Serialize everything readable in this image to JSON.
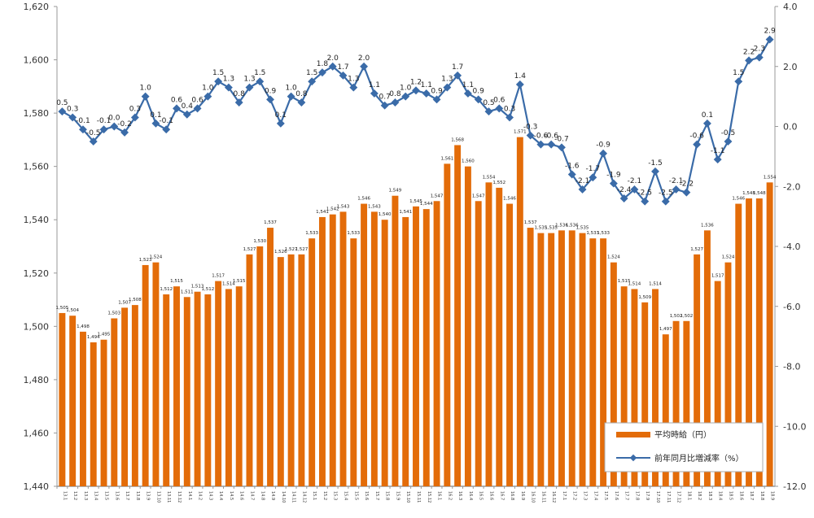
{
  "chart_data": {
    "type": "bar+line",
    "x": [
      "13.1",
      "13.2",
      "13.3",
      "13.4",
      "13.5",
      "13.6",
      "13.7",
      "13.8",
      "13.9",
      "13.10",
      "13.11",
      "13.12",
      "14.1",
      "14.2",
      "14.3",
      "14.4",
      "14.5",
      "14.6",
      "14.7",
      "14.8",
      "14.9",
      "14.10",
      "14.11",
      "14.12",
      "15.1",
      "15.2",
      "15.3",
      "15.4",
      "15.5",
      "15.6",
      "15.7",
      "15.8",
      "15.9",
      "15.10",
      "15.11",
      "15.12",
      "16.1",
      "16.2",
      "16.3",
      "16.4",
      "16.5",
      "16.6",
      "16.7",
      "16.8",
      "16.9",
      "16.10",
      "16.11",
      "16.12",
      "17.1",
      "17.2",
      "17.3",
      "17.4",
      "17.5",
      "17.6",
      "17.7",
      "17.8",
      "17.9",
      "17.10",
      "17.11",
      "17.12",
      "18.1",
      "18.2",
      "18.3",
      "18.4",
      "18.5",
      "18.6",
      "18.7",
      "18.8",
      "18.9"
    ],
    "series": [
      {
        "name": "平均時給（円）",
        "type": "bar",
        "axis": "left",
        "color": "#E36C09",
        "values": [
          1505,
          1504,
          1498,
          1494,
          1495,
          1503,
          1507,
          1508,
          1523,
          1524,
          1512,
          1515,
          1511,
          1513,
          1512,
          1517,
          1514,
          1515,
          1527,
          1530,
          1537,
          1526,
          1527,
          1527,
          1533,
          1541,
          1542,
          1543,
          1533,
          1546,
          1543,
          1540,
          1549,
          1541,
          1545,
          1544,
          1547,
          1561,
          1568,
          1560,
          1547,
          1554,
          1552,
          1546,
          1571,
          1537,
          1535,
          1535,
          1536,
          1536,
          1535,
          1533,
          1533,
          1524,
          1515,
          1514,
          1509,
          1514,
          1497,
          1502,
          1502,
          1527,
          1536,
          1517,
          1524,
          1546,
          1548,
          1548,
          1554
        ]
      },
      {
        "name": "前年同月比増減率（%）",
        "type": "line",
        "axis": "right",
        "color": "#3A6BA8",
        "values": [
          0.5,
          0.3,
          -0.1,
          -0.5,
          -0.1,
          0.0,
          -0.2,
          0.3,
          1.0,
          0.1,
          -0.1,
          0.6,
          0.4,
          0.6,
          1.0,
          1.5,
          1.3,
          0.8,
          1.3,
          1.5,
          0.9,
          0.1,
          1.0,
          0.8,
          1.5,
          1.8,
          2.0,
          1.7,
          1.3,
          2.0,
          1.1,
          0.7,
          0.8,
          1.0,
          1.2,
          1.1,
          0.9,
          1.3,
          1.7,
          1.1,
          0.9,
          0.5,
          0.6,
          0.3,
          1.4,
          -0.3,
          -0.6,
          -0.6,
          -0.7,
          -1.6,
          -2.1,
          -1.7,
          -0.9,
          -1.9,
          -2.4,
          -2.1,
          -2.5,
          -1.5,
          -2.5,
          -2.1,
          -2.2,
          -0.6,
          0.1,
          -1.1,
          -0.5,
          1.5,
          2.2,
          2.3,
          2.9
        ]
      }
    ],
    "left_axis": {
      "ylim": [
        1440,
        1620
      ],
      "ticks": [
        "1,440",
        "1,460",
        "1,480",
        "1,500",
        "1,520",
        "1,540",
        "1,560",
        "1,580",
        "1,600",
        "1,620"
      ]
    },
    "right_axis": {
      "ylim": [
        -12,
        4
      ],
      "ticks": [
        "-12.0",
        "-10.0",
        "-8.0",
        "-6.0",
        "-4.0",
        "-2.0",
        "0.0",
        "2.0",
        "4.0"
      ]
    },
    "legend": {
      "placement": "bottom-right",
      "entries": [
        "平均時給（円）",
        "前年同月比増減率（%）"
      ]
    },
    "grid": false
  }
}
